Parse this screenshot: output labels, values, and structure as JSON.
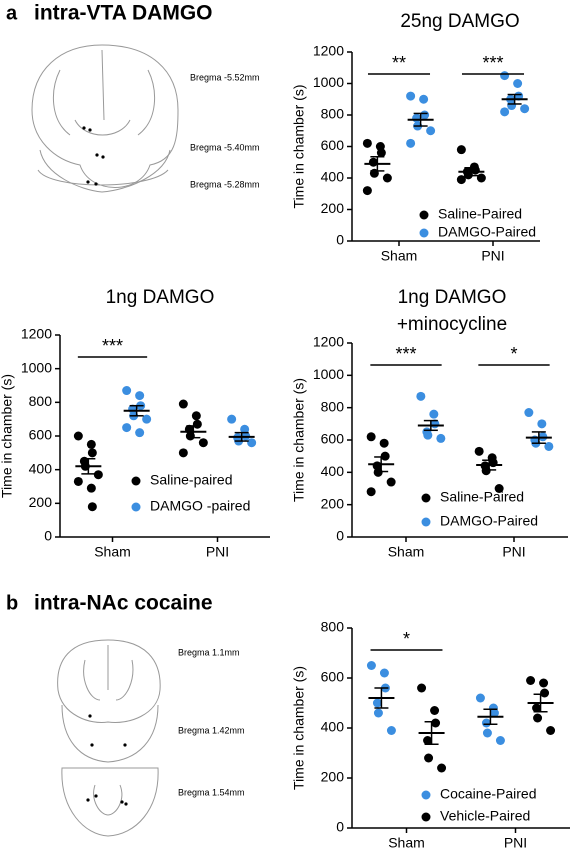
{
  "panels": [
    {
      "letter": "a",
      "title": "intra-VTA DAMGO",
      "bregma": [
        "Bregma -5.52mm",
        "Bregma -5.40mm",
        "Bregma -5.28mm"
      ]
    },
    {
      "letter": "b",
      "title": "intra-NAc cocaine",
      "bregma": [
        "Bregma 1.1mm",
        "Bregma 1.42mm",
        "Bregma 1.54mm"
      ]
    }
  ],
  "chart_data": [
    {
      "type": "dot",
      "title": "25ng DAMGO",
      "y_label": "Time in chamber (s)",
      "categories": [
        "Sham",
        "PNI"
      ],
      "ylim": [
        0,
        1200
      ],
      "yticks": [
        0,
        200,
        400,
        600,
        800,
        1000,
        1200
      ],
      "legend": "lower right",
      "annotations": [
        "**",
        "***"
      ],
      "series": [
        {
          "name": "Saline-Paired",
          "color": "#000000",
          "means": [
            490,
            440
          ],
          "errors": [
            45,
            25
          ],
          "points": [
            [
              620,
              600,
              560,
              500,
              430,
              400,
              320
            ],
            [
              580,
              470,
              450,
              440,
              420,
              400,
              390
            ]
          ]
        },
        {
          "name": "DAMGO-Paired",
          "color": "#3b8ee0",
          "means": [
            770,
            900
          ],
          "errors": [
            40,
            30
          ],
          "points": [
            [
              920,
              900,
              800,
              780,
              730,
              700,
              620
            ],
            [
              1050,
              1000,
              920,
              900,
              860,
              840,
              820
            ]
          ]
        }
      ]
    },
    {
      "type": "dot",
      "title": "1ng DAMGO",
      "y_label": "Time in chamber (s)",
      "categories": [
        "Sham",
        "PNI"
      ],
      "ylim": [
        0,
        1200
      ],
      "yticks": [
        0,
        200,
        400,
        600,
        800,
        1000,
        1200
      ],
      "legend": "lower right",
      "annotations": [
        "***"
      ],
      "series": [
        {
          "name": "Saline-paired",
          "color": "#000000",
          "means": [
            420,
            625
          ],
          "errors": [
            45,
            35
          ],
          "points": [
            [
              600,
              550,
              500,
              450,
              420,
              370,
              330,
              290,
              180
            ],
            [
              790,
              720,
              670,
              640,
              600,
              560,
              500
            ]
          ]
        },
        {
          "name": "DAMGO -paired",
          "color": "#3b8ee0",
          "means": [
            750,
            595
          ],
          "errors": [
            30,
            25
          ],
          "points": [
            [
              870,
              840,
              780,
              760,
              720,
              700,
              650,
              620
            ],
            [
              700,
              640,
              600,
              590,
              570,
              560
            ]
          ]
        }
      ]
    },
    {
      "type": "dot",
      "title": [
        "1ng DAMGO",
        "+minocycline"
      ],
      "y_label": "Time in chamber (s)",
      "categories": [
        "Sham",
        "PNI"
      ],
      "ylim": [
        0,
        1200
      ],
      "yticks": [
        0,
        200,
        400,
        600,
        800,
        1000,
        1200
      ],
      "legend": "lower right",
      "annotations": [
        "***",
        "*"
      ],
      "series": [
        {
          "name": "Saline-Paired",
          "color": "#000000",
          "means": [
            450,
            445
          ],
          "errors": [
            45,
            30
          ],
          "points": [
            [
              620,
              580,
              500,
              440,
              400,
              340,
              280
            ],
            [
              530,
              490,
              460,
              440,
              410,
              300
            ]
          ]
        },
        {
          "name": "DAMGO-Paired",
          "color": "#3b8ee0",
          "means": [
            690,
            615
          ],
          "errors": [
            30,
            35
          ],
          "points": [
            [
              870,
              760,
              700,
              650,
              630,
              610
            ],
            [
              770,
              700,
              620,
              600,
              580,
              560
            ]
          ]
        }
      ]
    },
    {
      "type": "dot",
      "y_label": "Time in chamber (s)",
      "categories": [
        "Sham",
        "PNI"
      ],
      "ylim": [
        0,
        800
      ],
      "yticks": [
        0,
        200,
        400,
        600,
        800
      ],
      "legend": "lower right",
      "annotations": [
        "*"
      ],
      "series": [
        {
          "name": "Cocaine-Paired",
          "color": "#3b8ee0",
          "means": [
            520,
            445
          ],
          "errors": [
            40,
            30
          ],
          "points": [
            [
              650,
              620,
              560,
              500,
              460,
              390
            ],
            [
              520,
              480,
              460,
              420,
              380,
              350
            ]
          ]
        },
        {
          "name": "Vehicle-Paired",
          "color": "#000000",
          "means": [
            380,
            500
          ],
          "errors": [
            45,
            35
          ],
          "points": [
            [
              560,
              470,
              420,
              350,
              280,
              240
            ],
            [
              590,
              580,
              540,
              480,
              440,
              390
            ]
          ]
        }
      ]
    }
  ]
}
